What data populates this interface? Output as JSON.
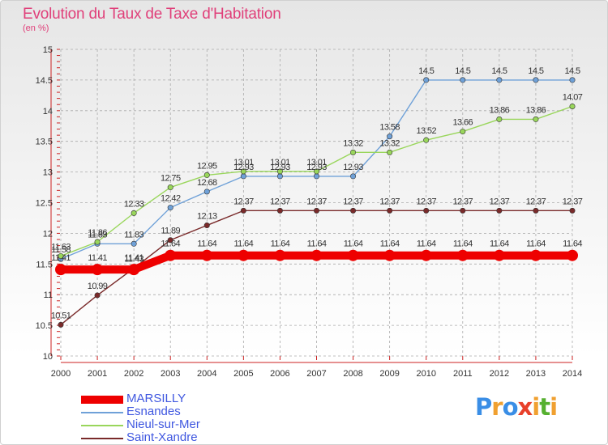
{
  "title": "Evolution du Taux de Taxe d'Habitation",
  "subtitle": "(en %)",
  "logo": {
    "text": "Proxiti",
    "letters": [
      {
        "ch": "P",
        "color": "#3a8ee6"
      },
      {
        "ch": "r",
        "color": "#f0a030"
      },
      {
        "ch": "o",
        "color": "#3a8ee6"
      },
      {
        "ch": "x",
        "color": "#e8402a"
      },
      {
        "ch": "i",
        "color": "#f0a030"
      },
      {
        "ch": "t",
        "color": "#56b030"
      },
      {
        "ch": "i",
        "color": "#f0a030"
      }
    ]
  },
  "chart_data": {
    "type": "line",
    "title": "Evolution du Taux de Taxe d'Habitation",
    "ylabel": "(en %)",
    "x": [
      "2000",
      "2001",
      "2002",
      "2003",
      "2004",
      "2005",
      "2006",
      "2007",
      "2008",
      "2009",
      "2010",
      "2011",
      "2012",
      "2013",
      "2014"
    ],
    "ylim": [
      10,
      15
    ],
    "yticks": [
      "10",
      "10.5",
      "11",
      "11.5",
      "12",
      "12.5",
      "13",
      "13.5",
      "14",
      "14.5",
      "15"
    ],
    "grid": true,
    "legend": "bottom-left",
    "series": [
      {
        "name": "MARSILLY",
        "color": "#ee0000",
        "style": "thick",
        "values": [
          11.41,
          11.41,
          11.41,
          11.64,
          11.64,
          11.64,
          11.64,
          11.64,
          11.64,
          11.64,
          11.64,
          11.64,
          11.64,
          11.64,
          11.64
        ],
        "labels": [
          "11.41",
          "11.41",
          "11.41",
          "11.64",
          "11.64",
          "11.64",
          "11.64",
          "11.64",
          "11.64",
          "11.64",
          "11.64",
          "11.64",
          "11.64",
          "11.64",
          "11.64"
        ]
      },
      {
        "name": "Esnandes",
        "color": "#6fa1d8",
        "style": "thin",
        "values": [
          11.58,
          11.83,
          11.83,
          12.42,
          12.68,
          12.93,
          12.93,
          12.93,
          12.93,
          13.58,
          14.5,
          14.5,
          14.5,
          14.5,
          14.5
        ],
        "labels": [
          "11.58",
          "11.83",
          "11.83",
          "12.42",
          "12.68",
          "12.93",
          "12.93",
          "12.93",
          "12.93",
          "13.58",
          "14.5",
          "14.5",
          "14.5",
          "14.5",
          "14.5"
        ]
      },
      {
        "name": "Nieul-sur-Mer",
        "color": "#99d65b",
        "style": "thin",
        "values": [
          11.63,
          11.86,
          12.33,
          12.75,
          12.95,
          13.01,
          13.01,
          13.01,
          13.32,
          13.32,
          13.52,
          13.66,
          13.86,
          13.86,
          14.07
        ],
        "labels": [
          "11.63",
          "11.86",
          "12.33",
          "12.75",
          "12.95",
          "13.01",
          "13.01",
          "13.01",
          "13.32",
          "13.32",
          "13.52",
          "13.66",
          "13.86",
          "13.86",
          "14.07"
        ]
      },
      {
        "name": "Saint-Xandre",
        "color": "#7a2a2a",
        "style": "thin",
        "values": [
          10.51,
          10.99,
          11.43,
          11.89,
          12.13,
          12.37,
          12.37,
          12.37,
          12.37,
          12.37,
          12.37,
          12.37,
          12.37,
          12.37,
          12.37
        ],
        "labels": [
          "10.51",
          "10.99",
          "11.43",
          "11.89",
          "12.13",
          "12.37",
          "12.37",
          "12.37",
          "12.37",
          "12.37",
          "12.37",
          "12.37",
          "12.37",
          "12.37",
          "12.37"
        ]
      }
    ]
  }
}
